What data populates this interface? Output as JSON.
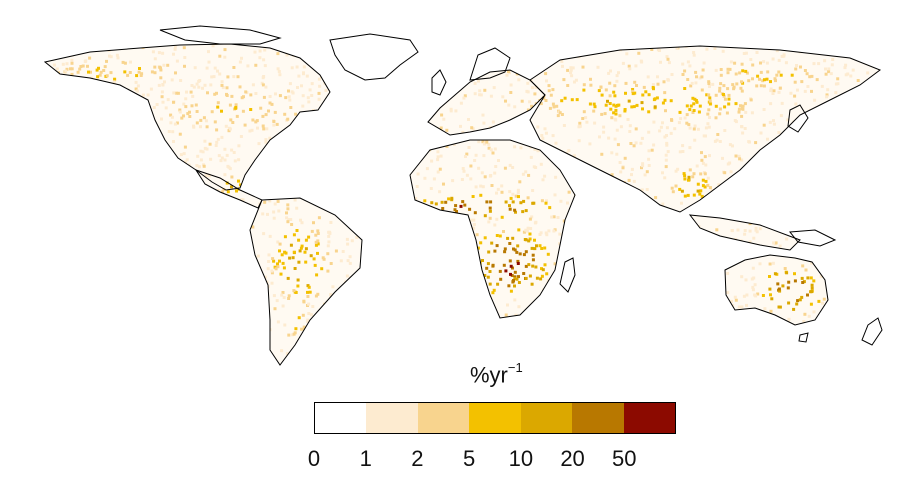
{
  "unit_label": {
    "base": "%yr",
    "exponent": "−1"
  },
  "legend": {
    "ticks": [
      "0",
      "1",
      "2",
      "5",
      "10",
      "20",
      "50"
    ],
    "colors": [
      "#ffffff",
      "#fdebd0",
      "#f8d48e",
      "#f3c100",
      "#dba800",
      "#b87800",
      "#8c0a00"
    ]
  },
  "map": {
    "projection": "equirectangular world",
    "ocean_color": "#ffffff",
    "coastline_color": "#000000"
  }
}
